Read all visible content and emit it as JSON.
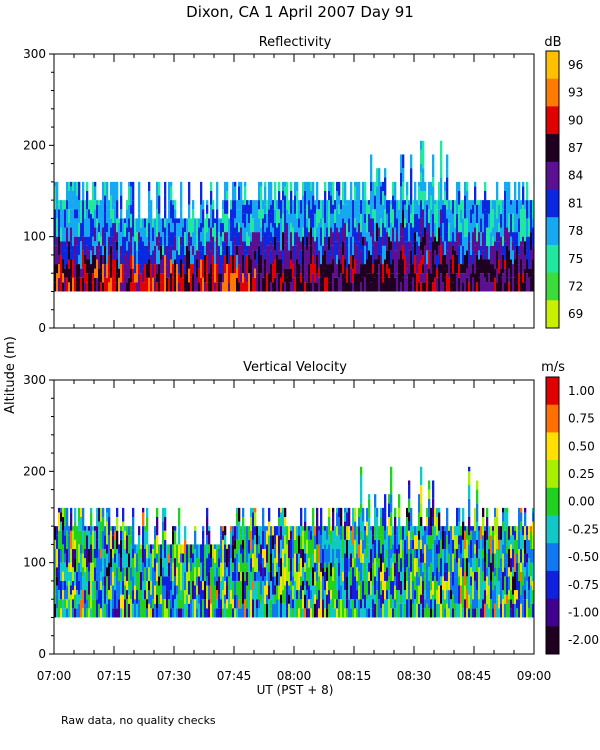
{
  "figure": {
    "title": "Dixon, CA   1 April 2007   Day  91",
    "ylabel": "Altitude (m)",
    "xlabel": "UT  (PST + 8)",
    "footnote": "Raw data, no quality checks"
  },
  "chart_data": [
    {
      "type": "heatmap",
      "title": "Reflectivity",
      "units": "dB",
      "x_ticks": [
        "07:00",
        "07:15",
        "07:30",
        "07:45",
        "08:00",
        "08:15",
        "08:30",
        "08:45",
        "09:00"
      ],
      "x_range_minutes": [
        0,
        120
      ],
      "ylim": [
        0,
        300
      ],
      "y_ticks": [
        0,
        100,
        200,
        300
      ],
      "colorbar_labels": [
        "96",
        "93",
        "90",
        "87",
        "84",
        "81",
        "78",
        "75",
        "72",
        "69"
      ],
      "colorbar_colors": [
        "#ffc000",
        "#ff7a00",
        "#e00000",
        "#200020",
        "#5a1090",
        "#0a28e0",
        "#16a8f0",
        "#20e8a0",
        "#3cdc3c",
        "#c8f000"
      ],
      "data_base_altitude_m": 40,
      "typical_top_altitude_m": [
        140,
        160
      ],
      "max_top_altitude_m": 220
    },
    {
      "type": "heatmap",
      "title": "Vertical Velocity",
      "units": "m/s",
      "x_ticks": [
        "07:00",
        "07:15",
        "07:30",
        "07:45",
        "08:00",
        "08:15",
        "08:30",
        "08:45",
        "09:00"
      ],
      "x_range_minutes": [
        0,
        120
      ],
      "ylim": [
        0,
        300
      ],
      "y_ticks": [
        0,
        100,
        200,
        300
      ],
      "colorbar_labels": [
        "1.00",
        "0.75",
        "0.50",
        "0.25",
        "0.00",
        "-0.25",
        "-0.50",
        "-0.75",
        "-1.00",
        "-2.00"
      ],
      "colorbar_colors": [
        "#e00000",
        "#ff7000",
        "#ffe000",
        "#a8f000",
        "#22d022",
        "#10c8c8",
        "#1078f0",
        "#1020e0",
        "#400090",
        "#200020"
      ],
      "data_base_altitude_m": 40,
      "typical_top_altitude_m": [
        140,
        160
      ],
      "max_top_altitude_m": 220
    }
  ]
}
